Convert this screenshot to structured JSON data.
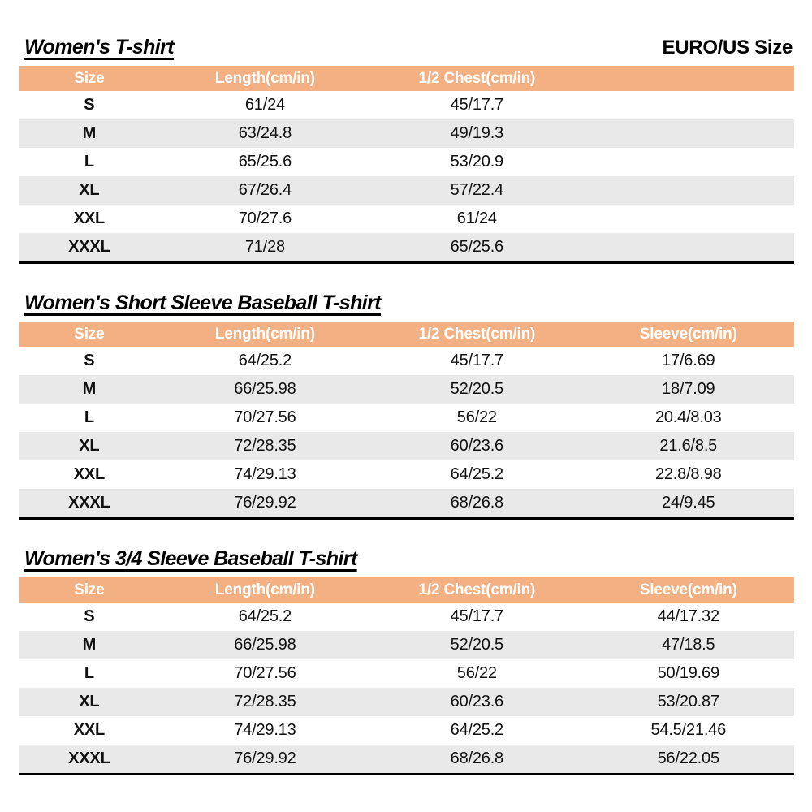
{
  "header": {
    "standard_label": "EURO/US Size"
  },
  "colors": {
    "header_bg": "#F2B083",
    "stripe_bg": "#E9E9E9",
    "header_text": "#FFFFFF",
    "text": "#111111"
  },
  "tables": [
    {
      "title": "Women's T-shirt",
      "columns": [
        "Size",
        "Length(cm/in)",
        "1/2 Chest(cm/in)"
      ],
      "rows": [
        [
          "S",
          "61/24",
          "45/17.7"
        ],
        [
          "M",
          "63/24.8",
          "49/19.3"
        ],
        [
          "L",
          "65/25.6",
          "53/20.9"
        ],
        [
          "XL",
          "67/26.4",
          "57/22.4"
        ],
        [
          "XXL",
          "70/27.6",
          "61/24"
        ],
        [
          "XXXL",
          "71/28",
          "65/25.6"
        ]
      ]
    },
    {
      "title": "Women's Short Sleeve Baseball T-shirt",
      "columns": [
        "Size",
        "Length(cm/in)",
        "1/2 Chest(cm/in)",
        "Sleeve(cm/in)"
      ],
      "rows": [
        [
          "S",
          "64/25.2",
          "45/17.7",
          "17/6.69"
        ],
        [
          "M",
          "66/25.98",
          "52/20.5",
          "18/7.09"
        ],
        [
          "L",
          "70/27.56",
          "56/22",
          "20.4/8.03"
        ],
        [
          "XL",
          "72/28.35",
          "60/23.6",
          "21.6/8.5"
        ],
        [
          "XXL",
          "74/29.13",
          "64/25.2",
          "22.8/8.98"
        ],
        [
          "XXXL",
          "76/29.92",
          "68/26.8",
          "24/9.45"
        ]
      ]
    },
    {
      "title": "Women's 3/4 Sleeve Baseball T-shirt",
      "columns": [
        "Size",
        "Length(cm/in)",
        "1/2 Chest(cm/in)",
        "Sleeve(cm/in)"
      ],
      "rows": [
        [
          "S",
          "64/25.2",
          "45/17.7",
          "44/17.32"
        ],
        [
          "M",
          "66/25.98",
          "52/20.5",
          "47/18.5"
        ],
        [
          "L",
          "70/27.56",
          "56/22",
          "50/19.69"
        ],
        [
          "XL",
          "72/28.35",
          "60/23.6",
          "53/20.87"
        ],
        [
          "XXL",
          "74/29.13",
          "64/25.2",
          "54.5/21.46"
        ],
        [
          "XXXL",
          "76/29.92",
          "68/26.8",
          "56/22.05"
        ]
      ]
    }
  ]
}
